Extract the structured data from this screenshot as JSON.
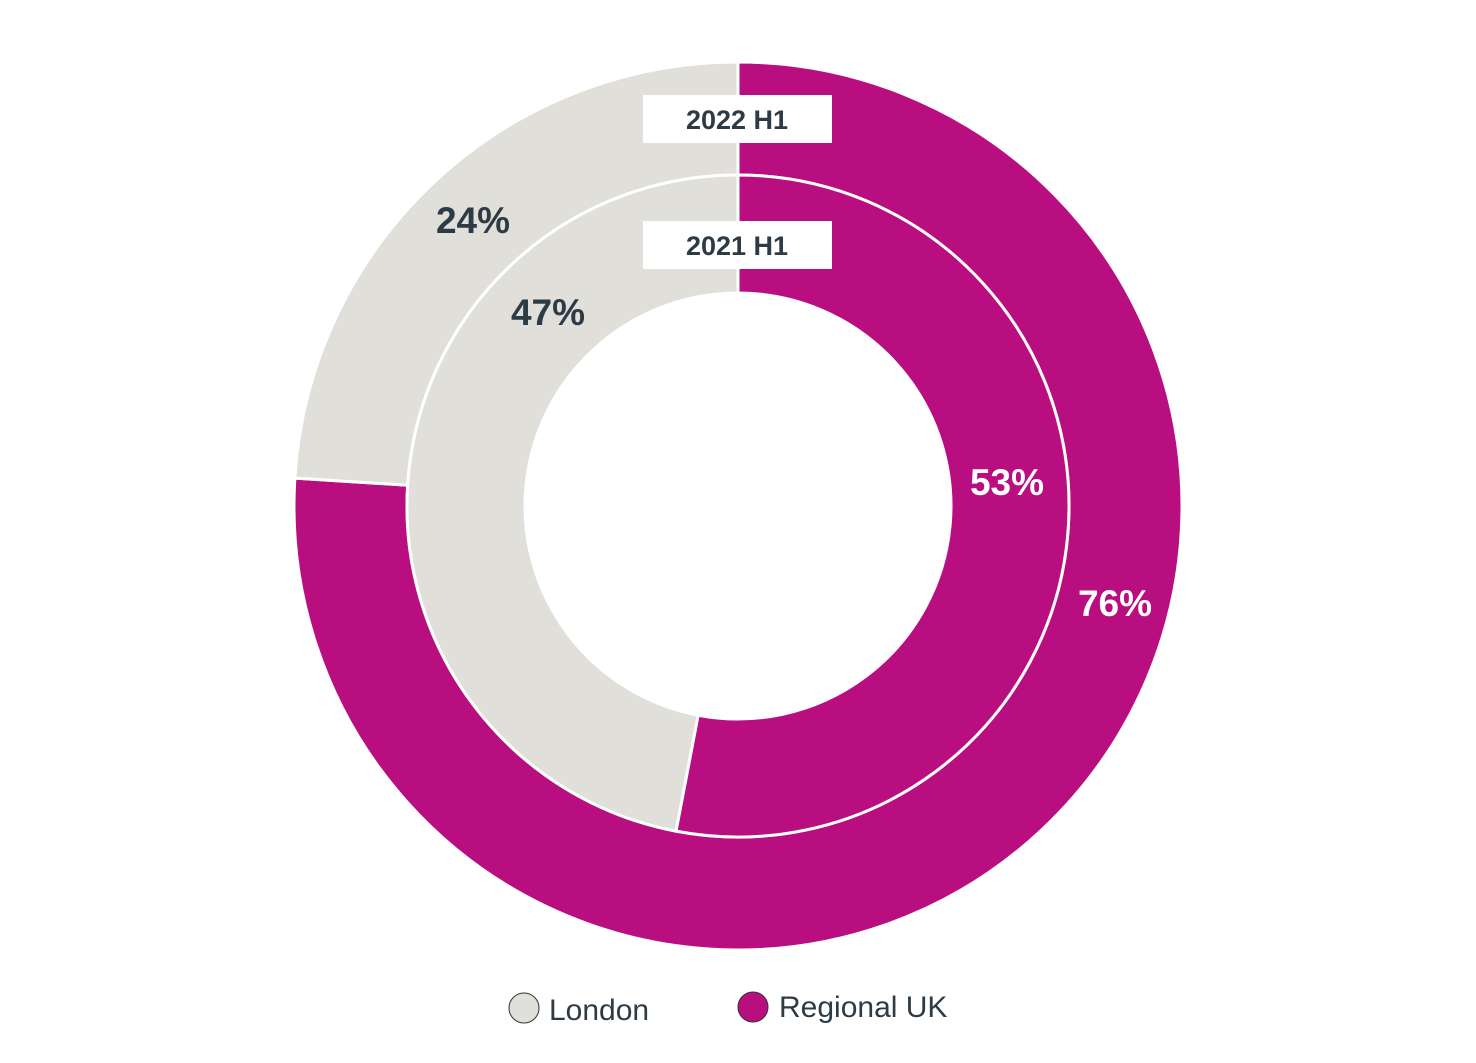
{
  "chart_data": {
    "type": "pie",
    "subtype": "nested-donut",
    "title": "",
    "legend": {
      "placement": "bottom",
      "entries": [
        {
          "label": "London",
          "color": "#e0dfda"
        },
        {
          "label": "Regional UK",
          "color": "#b90e7f"
        }
      ]
    },
    "rings": [
      {
        "name": "2022 H1",
        "position": "outer",
        "slices": [
          {
            "category": "Regional UK",
            "value": 76,
            "label": "76%"
          },
          {
            "category": "London",
            "value": 24,
            "label": "24%"
          }
        ]
      },
      {
        "name": "2021 H1",
        "position": "inner",
        "slices": [
          {
            "category": "Regional UK",
            "value": 53,
            "label": "53%"
          },
          {
            "category": "London",
            "value": 47,
            "label": "47%"
          }
        ]
      }
    ],
    "label_colors": {
      "on_regional": "#ffffff",
      "on_london": "#2d3b45"
    }
  }
}
